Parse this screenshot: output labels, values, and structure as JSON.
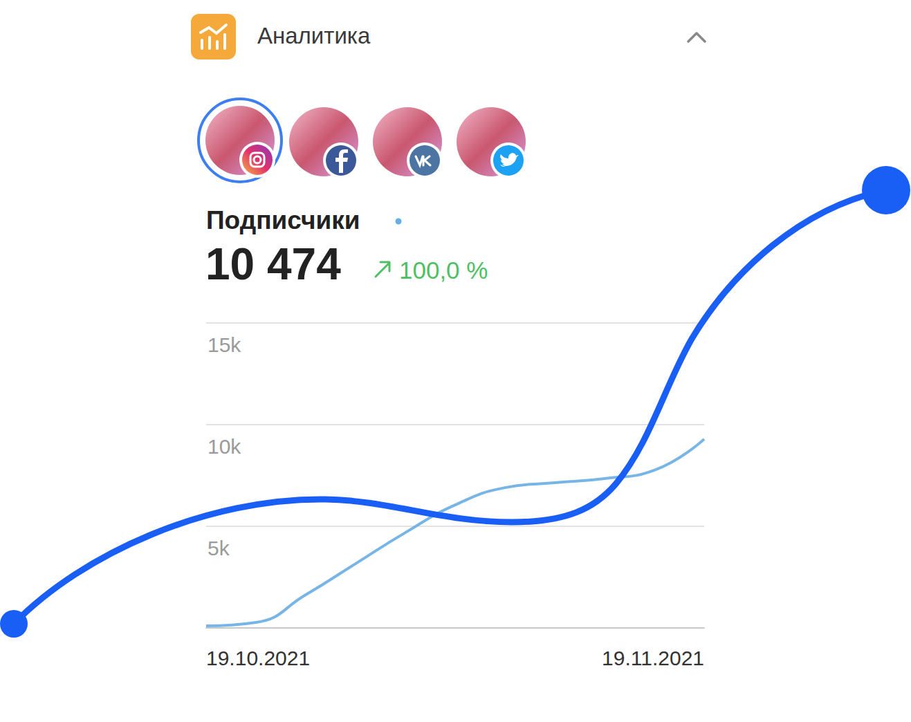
{
  "header": {
    "title": "Аналитика"
  },
  "metric": {
    "label": "Подписчики",
    "total": "10 474",
    "change": "100,0 %"
  },
  "chart_data": {
    "type": "line",
    "categories": [
      "19.10.2021",
      null,
      null,
      null,
      null,
      null,
      null,
      null,
      null,
      null,
      "19.11.2021"
    ],
    "series": [
      {
        "color": "#76b5e6",
        "values": [
          100,
          270,
          1630,
          3160,
          4690,
          6050,
          6900,
          7140,
          7350,
          7760,
          9290
        ]
      }
    ],
    "ylim": [
      0,
      15000
    ],
    "yticks": [
      {
        "value": 5000,
        "label": "5k"
      },
      {
        "value": 10000,
        "label": "10k"
      },
      {
        "value": 15000,
        "label": "15k"
      }
    ],
    "grid": true,
    "line_style": "smooth"
  }
}
